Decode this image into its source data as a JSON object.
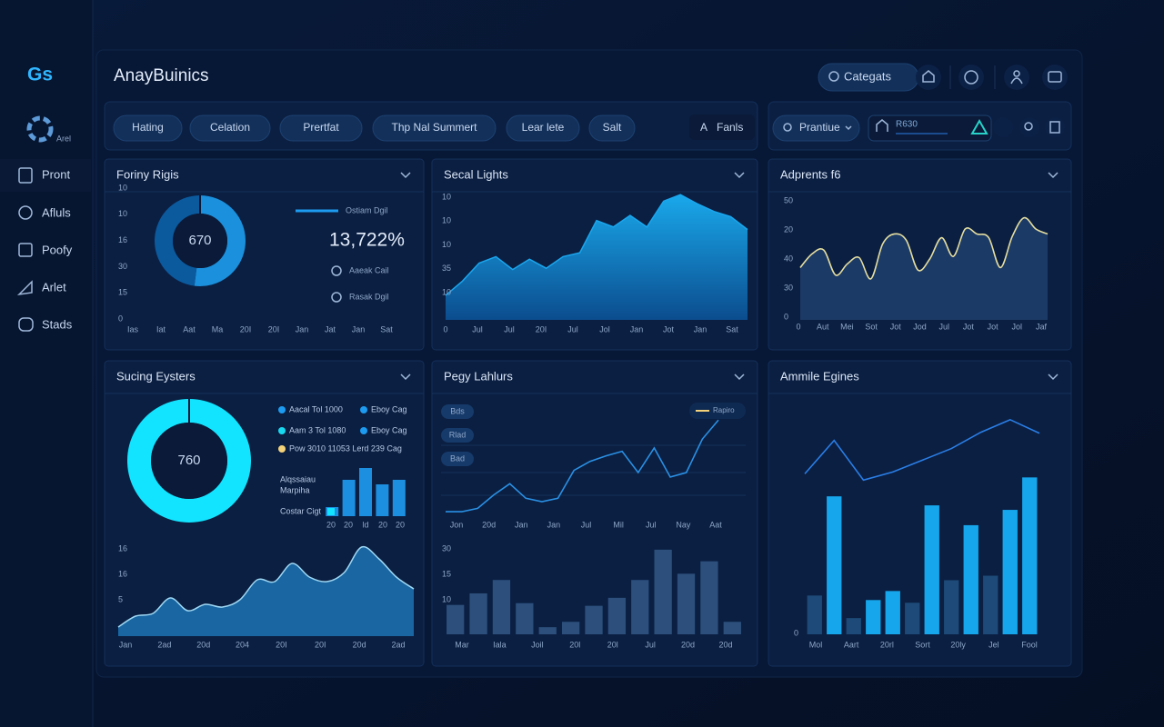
{
  "sidebar": {
    "logo": "Gs",
    "brand_sub": "Arel",
    "items": [
      "Pront",
      "Afluls",
      "Poofy",
      "Arlet",
      "Stads"
    ]
  },
  "header": {
    "title": "AnayBuinics",
    "search": "Categats"
  },
  "toolbar": {
    "filters": [
      "Hating",
      "Celation",
      "Prertfat",
      "Thp Nal Summert",
      "Lear lete",
      "Salt"
    ],
    "right_button": "Fanls",
    "select": "Prantiue",
    "input": "R630"
  },
  "chart_data": [
    {
      "title": "Foriny Rigis",
      "charts": [
        {
          "type": "donut",
          "center_label": "670",
          "values": [
            52,
            48
          ],
          "colors": [
            "#1b90dc",
            "#0b5a9e"
          ],
          "y_labels": [
            "10",
            "10",
            "16",
            "30",
            "15",
            "0"
          ],
          "x_labels": [
            "Ias",
            "Iat",
            "Aat",
            "Ma",
            "20I",
            "20I",
            "Jan",
            "Jat",
            "Jan",
            "Sat"
          ],
          "legend": "Ostiam Dgil",
          "kpi": "13,722%",
          "notes": [
            "Aaeak Cail",
            "Rasak Dgil"
          ]
        }
      ]
    },
    {
      "title": "Secal Lights",
      "charts": [
        {
          "type": "area",
          "color": "#1aa6ee",
          "ylim": [
            0,
            100
          ],
          "values": [
            19,
            30,
            44,
            49,
            39,
            47,
            40,
            49,
            52,
            77,
            72,
            81,
            72,
            92,
            97,
            90,
            84,
            80,
            70
          ],
          "y_labels": [
            "10",
            "10",
            "10",
            "35",
            "10"
          ],
          "x_labels": [
            "0",
            "Jul",
            "Jul",
            "20I",
            "Jul",
            "Jol",
            "Jan",
            "Jot",
            "Jan",
            "Sat"
          ]
        }
      ]
    },
    {
      "title": "Adprents f6",
      "charts": [
        {
          "type": "line",
          "color": "#e6dfa0",
          "fill": "#1c3a66",
          "smooth": true,
          "ylim": [
            0,
            100
          ],
          "values": [
            42,
            53,
            56,
            36,
            45,
            50,
            33,
            61,
            69,
            64,
            40,
            49,
            66,
            51,
            73,
            69,
            66,
            42,
            67,
            82,
            73,
            69
          ],
          "y_labels": [
            "50",
            "20",
            "40",
            "30",
            "0"
          ],
          "x_labels": [
            "0",
            "Aut",
            "Mei",
            "Sot",
            "Jot",
            "Jod",
            "Jul",
            "Jot",
            "Jot",
            "Jol",
            "Jaf"
          ]
        }
      ]
    },
    {
      "title": "Sucing Eysters",
      "charts": [
        {
          "type": "donut",
          "center_label": "760",
          "values": [
            100
          ],
          "colors": [
            "#12e4ff"
          ],
          "legend_items": [
            "Aacal Tol 1000",
            "Eboy Cag",
            "Aam 3 Tol 1080",
            "Eboy Cag",
            "Pow 3010 11053 Lerd 239 Cag"
          ],
          "legend_colors": [
            "#1d9bf0",
            "#1d9bf0",
            "#18d8f0",
            "#1d9bf0",
            "#f3d27a"
          ]
        },
        {
          "type": "bar",
          "color": "#1d8fe0",
          "ylim": [
            0,
            60
          ],
          "values": [
            10,
            40,
            53,
            35,
            40
          ],
          "labels": [
            "Alqssaiau",
            "Marpiha"
          ],
          "legend": "Costar Cigt",
          "x_labels": [
            "20",
            "20",
            "ld",
            "20",
            "20"
          ]
        },
        {
          "type": "area",
          "color": "#9fd8f4",
          "fill": "#1a6aa8",
          "smooth": true,
          "ylim": [
            0,
            100
          ],
          "values": [
            10,
            22,
            25,
            42,
            28,
            35,
            32,
            40,
            62,
            60,
            80,
            65,
            60,
            70,
            98,
            85,
            65,
            52
          ],
          "y_labels": [
            "16",
            "16",
            "5"
          ],
          "x_labels": [
            "Jan",
            "2ad",
            "20d",
            "204",
            "20I",
            "20I",
            "20d",
            "2ad"
          ]
        }
      ]
    },
    {
      "title": "Pegy Lahlurs",
      "charts": [
        {
          "type": "line",
          "color": "#2a90e4",
          "ylim": [
            0,
            100
          ],
          "values": [
            4,
            4,
            7,
            19,
            29,
            16,
            13,
            16,
            41,
            49,
            54,
            58,
            39,
            61,
            35,
            39,
            69,
            86
          ],
          "tags": [
            "Bds",
            "Rlad",
            "Bad"
          ],
          "legend": "Rapiro",
          "x_labels": [
            "Jon",
            "20d",
            "Jan",
            "Jan",
            "Jul",
            "Mil",
            "Jul",
            "Nay",
            "Aat"
          ]
        },
        {
          "type": "bar",
          "color": "#2c4f7c",
          "ylim": [
            0,
            100
          ],
          "values": [
            33,
            46,
            61,
            35,
            8,
            14,
            32,
            41,
            61,
            95,
            68,
            82,
            14
          ],
          "y_labels": [
            "30",
            "15",
            "10"
          ],
          "x_labels": [
            "Mar",
            "Iala",
            "Joil",
            "20l",
            "20l",
            "Jul",
            "20d",
            "20d"
          ]
        }
      ]
    },
    {
      "title": "Ammile Egines",
      "charts": [
        {
          "type": "bar",
          "ylim": [
            0,
            260
          ],
          "values": [
            43,
            153,
            18,
            38,
            48,
            35,
            143,
            60,
            121,
            65,
            138,
            174
          ],
          "colors": [
            "#1d4a78",
            "#16a6ec",
            "#1d4a78",
            "#16a6ec",
            "#16a6ec",
            "#1d4a78",
            "#16a6ec",
            "#1d4a78",
            "#16a6ec",
            "#1d4a78",
            "#16a6ec",
            "#16a6ec"
          ],
          "y_labels": [
            "0"
          ],
          "x_labels": [
            "Mol",
            "Aart",
            "20rl",
            "Sort",
            "20ly",
            "Jel",
            "Fool"
          ]
        },
        {
          "type": "line",
          "color": "#2a7ee6",
          "ylim": [
            0,
            260
          ],
          "values": [
            178,
            215,
            171,
            180,
            193,
            206,
            224,
            238,
            223
          ]
        }
      ]
    }
  ]
}
